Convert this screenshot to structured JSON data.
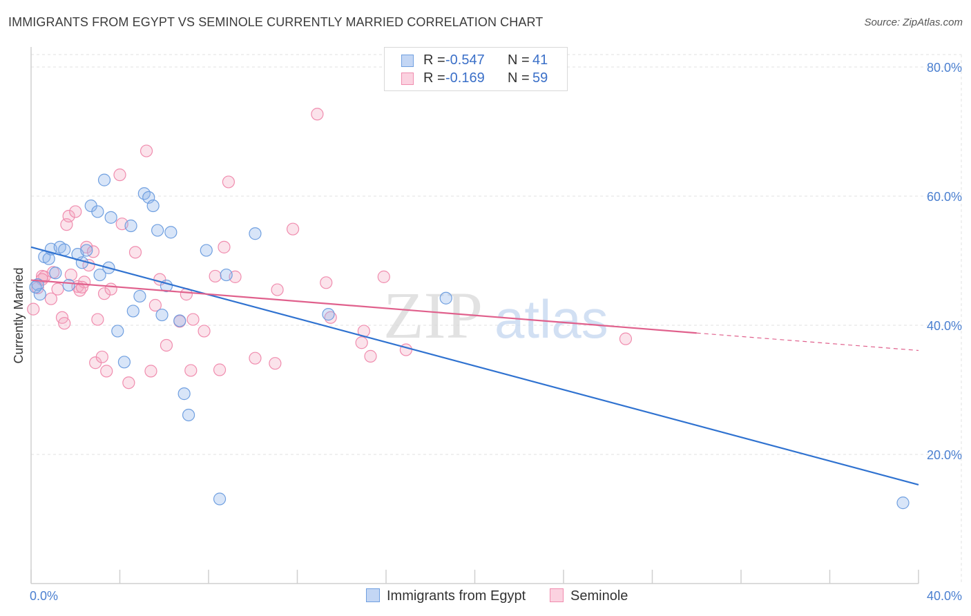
{
  "title": "IMMIGRANTS FROM EGYPT VS SEMINOLE CURRENTLY MARRIED CORRELATION CHART",
  "source": "Source: ZipAtlas.com",
  "watermark": {
    "zip": "ZIP",
    "atlas": "atlas"
  },
  "legend": {
    "r_label": "R =",
    "n_label": "N =",
    "rows": [
      {
        "r": "-0.547",
        "n": "41",
        "color": "#8fb4ea"
      },
      {
        "r": "-0.169",
        "n": "59",
        "color": "#f4a7c0"
      }
    ]
  },
  "chart_data": {
    "type": "scatter",
    "title": "IMMIGRANTS FROM EGYPT VS SEMINOLE CURRENTLY MARRIED CORRELATION CHART",
    "xlabel": "",
    "ylabel": "Currently Married",
    "xlim": [
      0,
      40
    ],
    "ylim": [
      0,
      82
    ],
    "x_tick_labels": [
      "0.0%",
      "40.0%"
    ],
    "y_tick_values": [
      20,
      40,
      60,
      80
    ],
    "y_tick_labels": [
      "20.0%",
      "40.0%",
      "60.0%",
      "80.0%"
    ],
    "grid": "horizontal dashed",
    "legend_position": "bottom-center",
    "series": [
      {
        "name": "Immigrants from Egypt",
        "color": "#6f9fe0",
        "line_color": "#2f72d0",
        "trend": {
          "x": [
            0,
            40
          ],
          "y": [
            52.1,
            15.3
          ]
        },
        "points": [
          [
            0.3,
            46.3
          ],
          [
            0.4,
            44.8
          ],
          [
            0.6,
            50.6
          ],
          [
            0.8,
            50.3
          ],
          [
            0.9,
            51.8
          ],
          [
            1.1,
            48.1
          ],
          [
            1.3,
            52.1
          ],
          [
            1.5,
            51.7
          ],
          [
            1.7,
            46.2
          ],
          [
            2.1,
            51.0
          ],
          [
            2.3,
            49.7
          ],
          [
            2.5,
            51.6
          ],
          [
            2.7,
            58.5
          ],
          [
            3.0,
            57.6
          ],
          [
            3.1,
            47.8
          ],
          [
            3.3,
            62.5
          ],
          [
            3.5,
            48.9
          ],
          [
            3.6,
            56.7
          ],
          [
            3.9,
            39.1
          ],
          [
            4.2,
            34.3
          ],
          [
            4.5,
            55.4
          ],
          [
            4.6,
            42.2
          ],
          [
            4.9,
            44.5
          ],
          [
            5.1,
            60.4
          ],
          [
            5.3,
            59.8
          ],
          [
            5.5,
            58.5
          ],
          [
            5.7,
            54.7
          ],
          [
            5.9,
            41.6
          ],
          [
            6.1,
            46.1
          ],
          [
            6.3,
            54.4
          ],
          [
            6.7,
            40.7
          ],
          [
            6.9,
            29.4
          ],
          [
            7.1,
            26.1
          ],
          [
            7.9,
            51.6
          ],
          [
            8.5,
            13.1
          ],
          [
            8.8,
            47.8
          ],
          [
            10.1,
            54.2
          ],
          [
            13.4,
            41.7
          ],
          [
            18.7,
            44.2
          ],
          [
            39.3,
            12.5
          ],
          [
            0.2,
            45.9
          ]
        ]
      },
      {
        "name": "Seminole",
        "color": "#f4a7c0",
        "line_color": "#e0608c",
        "trend": {
          "x": [
            0,
            30
          ],
          "y": [
            47.0,
            38.8
          ]
        },
        "trend_extension": {
          "x": [
            30,
            40
          ],
          "y": [
            38.8,
            36.1
          ]
        },
        "points": [
          [
            0.1,
            42.5
          ],
          [
            0.3,
            45.8
          ],
          [
            0.5,
            47.6
          ],
          [
            0.6,
            47.5
          ],
          [
            0.9,
            44.1
          ],
          [
            1.0,
            48.2
          ],
          [
            1.2,
            45.6
          ],
          [
            1.4,
            41.2
          ],
          [
            1.5,
            40.3
          ],
          [
            1.6,
            55.6
          ],
          [
            1.7,
            56.9
          ],
          [
            1.8,
            47.8
          ],
          [
            2.0,
            57.6
          ],
          [
            2.1,
            46.0
          ],
          [
            2.2,
            45.4
          ],
          [
            2.4,
            46.7
          ],
          [
            2.5,
            52.1
          ],
          [
            2.6,
            49.3
          ],
          [
            2.8,
            51.4
          ],
          [
            2.9,
            34.2
          ],
          [
            3.0,
            40.9
          ],
          [
            3.2,
            35.1
          ],
          [
            3.3,
            44.9
          ],
          [
            3.4,
            32.9
          ],
          [
            3.6,
            45.6
          ],
          [
            4.0,
            63.3
          ],
          [
            4.1,
            55.7
          ],
          [
            4.4,
            31.1
          ],
          [
            4.7,
            51.3
          ],
          [
            5.2,
            67.0
          ],
          [
            5.4,
            32.9
          ],
          [
            5.6,
            43.1
          ],
          [
            5.8,
            47.1
          ],
          [
            6.1,
            36.9
          ],
          [
            6.7,
            40.6
          ],
          [
            7.0,
            44.8
          ],
          [
            7.2,
            33.0
          ],
          [
            7.3,
            40.9
          ],
          [
            7.8,
            39.1
          ],
          [
            8.3,
            47.6
          ],
          [
            8.5,
            33.1
          ],
          [
            8.7,
            52.1
          ],
          [
            8.9,
            62.2
          ],
          [
            9.2,
            47.5
          ],
          [
            10.1,
            34.9
          ],
          [
            11.0,
            34.1
          ],
          [
            11.1,
            45.5
          ],
          [
            11.8,
            54.9
          ],
          [
            12.9,
            72.7
          ],
          [
            13.3,
            46.6
          ],
          [
            13.5,
            41.2
          ],
          [
            14.9,
            37.3
          ],
          [
            15.0,
            39.1
          ],
          [
            15.3,
            35.2
          ],
          [
            15.9,
            47.5
          ],
          [
            16.9,
            36.2
          ],
          [
            26.8,
            37.9
          ],
          [
            0.5,
            47.1
          ],
          [
            2.3,
            45.9
          ]
        ]
      }
    ]
  }
}
